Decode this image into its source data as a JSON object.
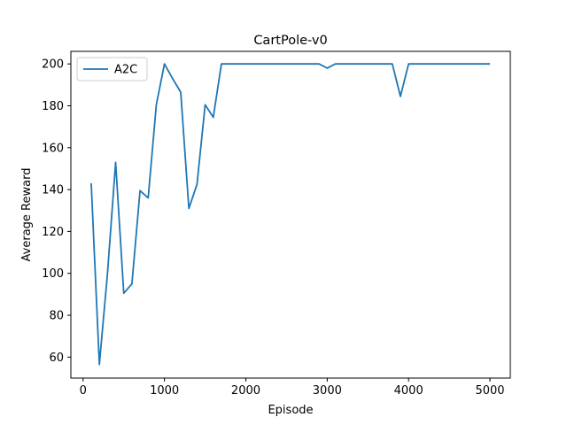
{
  "chart_data": {
    "type": "line",
    "title": "CartPole-v0",
    "xlabel": "Episode",
    "ylabel": "Average Reward",
    "xlim": [
      -150,
      5250
    ],
    "ylim": [
      50,
      206
    ],
    "xticks": [
      0,
      1000,
      2000,
      3000,
      4000,
      5000
    ],
    "yticks": [
      60,
      80,
      100,
      120,
      140,
      160,
      180,
      200
    ],
    "grid": false,
    "legend_position": "top-left",
    "series": [
      {
        "name": "A2C",
        "color": "#1f77b4",
        "x": [
          100,
          200,
          300,
          400,
          500,
          600,
          700,
          800,
          900,
          1000,
          1100,
          1200,
          1300,
          1400,
          1500,
          1600,
          1700,
          1800,
          1900,
          2000,
          2100,
          2200,
          2300,
          2400,
          2500,
          2600,
          2700,
          2800,
          2900,
          3000,
          3100,
          3200,
          3300,
          3400,
          3500,
          3600,
          3700,
          3800,
          3900,
          4000,
          4100,
          4200,
          4300,
          4400,
          4500,
          4600,
          4700,
          4800,
          4900,
          5000
        ],
        "y": [
          143,
          56.5,
          100,
          153,
          90.5,
          95,
          139.5,
          136,
          180.5,
          200,
          193,
          186.5,
          131,
          142.5,
          180.5,
          174.5,
          200,
          200,
          200,
          200,
          200,
          200,
          200,
          200,
          200,
          200,
          200,
          200,
          200,
          198,
          200,
          200,
          200,
          200,
          200,
          200,
          200,
          200,
          184.5,
          200,
          200,
          200,
          200,
          200,
          200,
          200,
          200,
          200,
          200,
          200
        ]
      }
    ]
  }
}
